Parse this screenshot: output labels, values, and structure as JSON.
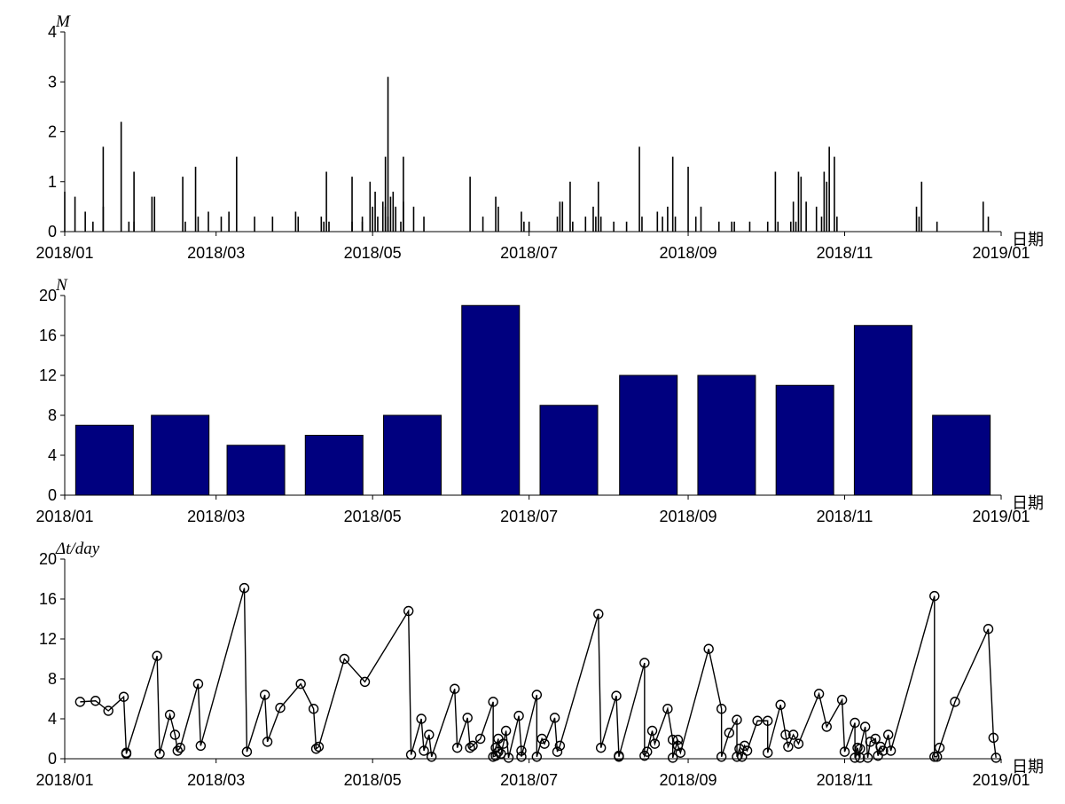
{
  "chart_data": [
    {
      "type": "bar",
      "id": "magnitude",
      "title": "",
      "ylabel": "M",
      "xlabel": "日期",
      "x_ticks": [
        "2018/01",
        "2018/03",
        "2018/05",
        "2018/07",
        "2018/09",
        "2018/11",
        "2019/01"
      ],
      "ylim": [
        0,
        4
      ],
      "y_ticks": [
        "0",
        "1",
        "2",
        "3",
        "4"
      ],
      "grid": false,
      "bar_color": "#000000",
      "series": [
        {
          "values": [
            [
              "2018-01-01",
              0.8
            ],
            [
              "2018-01-05",
              0.7
            ],
            [
              "2018-01-09",
              0.4
            ],
            [
              "2018-01-12",
              0.2
            ],
            [
              "2018-01-16",
              0.5
            ],
            [
              "2018-01-16",
              1.7
            ],
            [
              "2018-01-23",
              2.2
            ],
            [
              "2018-01-26",
              0.2
            ],
            [
              "2018-01-28",
              1.2
            ],
            [
              "2018-01-28",
              0.2
            ],
            [
              "2018-02-04",
              0.7
            ],
            [
              "2018-02-05",
              0.7
            ],
            [
              "2018-02-16",
              1.1
            ],
            [
              "2018-02-17",
              0.2
            ],
            [
              "2018-02-21",
              1.3
            ],
            [
              "2018-02-22",
              0.3
            ],
            [
              "2018-02-26",
              0.4
            ],
            [
              "2018-03-03",
              0.3
            ],
            [
              "2018-03-06",
              0.4
            ],
            [
              "2018-03-09",
              1.5
            ],
            [
              "2018-03-16",
              0.3
            ],
            [
              "2018-03-23",
              0.3
            ],
            [
              "2018-04-01",
              0.4
            ],
            [
              "2018-04-02",
              0.3
            ],
            [
              "2018-04-11",
              0.3
            ],
            [
              "2018-04-12",
              0.2
            ],
            [
              "2018-04-13",
              1.2
            ],
            [
              "2018-04-14",
              0.2
            ],
            [
              "2018-04-23",
              1.1
            ],
            [
              "2018-04-23",
              0.2
            ],
            [
              "2018-04-27",
              0.2
            ],
            [
              "2018-04-27",
              0.3
            ],
            [
              "2018-04-30",
              1.0
            ],
            [
              "2018-05-01",
              0.5
            ],
            [
              "2018-05-02",
              0.8
            ],
            [
              "2018-05-03",
              0.3
            ],
            [
              "2018-05-05",
              0.6
            ],
            [
              "2018-05-06",
              1.5
            ],
            [
              "2018-05-06",
              0.5
            ],
            [
              "2018-05-07",
              3.1
            ],
            [
              "2018-05-07",
              0.3
            ],
            [
              "2018-05-08",
              0.7
            ],
            [
              "2018-05-09",
              0.8
            ],
            [
              "2018-05-10",
              0.5
            ],
            [
              "2018-05-12",
              0.2
            ],
            [
              "2018-05-13",
              0.6
            ],
            [
              "2018-05-13",
              1.5
            ],
            [
              "2018-05-17",
              0.5
            ],
            [
              "2018-05-21",
              0.3
            ],
            [
              "2018-06-08",
              1.1
            ],
            [
              "2018-06-13",
              0.3
            ],
            [
              "2018-06-18",
              0.7
            ],
            [
              "2018-06-19",
              0.5
            ],
            [
              "2018-06-28",
              0.4
            ],
            [
              "2018-06-29",
              0.2
            ],
            [
              "2018-07-01",
              0.2
            ],
            [
              "2018-07-12",
              0.3
            ],
            [
              "2018-07-13",
              0.6
            ],
            [
              "2018-07-14",
              0.6
            ],
            [
              "2018-07-17",
              1.0
            ],
            [
              "2018-07-18",
              0.2
            ],
            [
              "2018-07-23",
              0.3
            ],
            [
              "2018-07-26",
              0.5
            ],
            [
              "2018-07-27",
              0.3
            ],
            [
              "2018-07-28",
              1.0
            ],
            [
              "2018-07-29",
              0.3
            ],
            [
              "2018-08-03",
              0.2
            ],
            [
              "2018-08-08",
              0.2
            ],
            [
              "2018-08-13",
              1.7
            ],
            [
              "2018-08-14",
              0.3
            ],
            [
              "2018-08-20",
              0.4
            ],
            [
              "2018-08-22",
              0.3
            ],
            [
              "2018-08-24",
              0.5
            ],
            [
              "2018-08-26",
              1.5
            ],
            [
              "2018-08-27",
              0.3
            ],
            [
              "2018-09-01",
              1.3
            ],
            [
              "2018-09-04",
              0.3
            ],
            [
              "2018-09-06",
              0.5
            ],
            [
              "2018-09-13",
              0.2
            ],
            [
              "2018-09-18",
              0.2
            ],
            [
              "2018-09-19",
              0.2
            ],
            [
              "2018-09-25",
              0.2
            ],
            [
              "2018-10-02",
              0.2
            ],
            [
              "2018-10-05",
              1.2
            ],
            [
              "2018-10-06",
              0.2
            ],
            [
              "2018-10-11",
              0.2
            ],
            [
              "2018-10-12",
              0.6
            ],
            [
              "2018-10-13",
              0.2
            ],
            [
              "2018-10-14",
              1.2
            ],
            [
              "2018-10-15",
              1.1
            ],
            [
              "2018-10-17",
              0.6
            ],
            [
              "2018-10-21",
              0.5
            ],
            [
              "2018-10-23",
              0.3
            ],
            [
              "2018-10-24",
              1.2
            ],
            [
              "2018-10-25",
              1.0
            ],
            [
              "2018-10-26",
              1.7
            ],
            [
              "2018-10-28",
              1.5
            ],
            [
              "2018-10-29",
              0.3
            ],
            [
              "2018-11-29",
              0.5
            ],
            [
              "2018-11-30",
              0.3
            ],
            [
              "2018-12-01",
              1.0
            ],
            [
              "2018-12-07",
              0.2
            ],
            [
              "2018-12-25",
              0.6
            ],
            [
              "2018-12-27",
              0.3
            ]
          ]
        }
      ]
    },
    {
      "type": "bar",
      "id": "monthly-count",
      "title": "",
      "ylabel": "N",
      "xlabel": "日期",
      "x_ticks": [
        "2018/01",
        "2018/03",
        "2018/05",
        "2018/07",
        "2018/09",
        "2018/11",
        "2019/01"
      ],
      "ylim": [
        0,
        20
      ],
      "y_ticks": [
        "0",
        "4",
        "8",
        "12",
        "16",
        "20"
      ],
      "grid": false,
      "bar_color": "#00007f",
      "categories": [
        "2018/01",
        "2018/02",
        "2018/03",
        "2018/04",
        "2018/05",
        "2018/06",
        "2018/07",
        "2018/08",
        "2018/09",
        "2018/10",
        "2018/11",
        "2018/12"
      ],
      "values": [
        7,
        8,
        5,
        6,
        8,
        19,
        9,
        12,
        12,
        11,
        17,
        8
      ]
    },
    {
      "type": "line",
      "id": "interval",
      "title": "",
      "ylabel": "Δt/day",
      "xlabel": "日期",
      "x_ticks": [
        "2018/01",
        "2018/03",
        "2018/05",
        "2018/07",
        "2018/09",
        "2018/11",
        "2019/01"
      ],
      "ylim": [
        0,
        20
      ],
      "y_ticks": [
        "0",
        "4",
        "8",
        "12",
        "16",
        "20"
      ],
      "grid": false,
      "marker": "circle",
      "line_color": "#000000",
      "series": [
        {
          "points": [
            [
              "2018-01-07",
              5.7
            ],
            [
              "2018-01-13",
              5.8
            ],
            [
              "2018-01-18",
              4.8
            ],
            [
              "2018-01-24",
              6.2
            ],
            [
              "2018-01-25",
              0.6
            ],
            [
              "2018-01-25",
              0.5
            ],
            [
              "2018-02-06",
              10.3
            ],
            [
              "2018-02-07",
              0.5
            ],
            [
              "2018-02-11",
              4.4
            ],
            [
              "2018-02-13",
              2.4
            ],
            [
              "2018-02-14",
              0.8
            ],
            [
              "2018-02-15",
              1.1
            ],
            [
              "2018-02-22",
              7.5
            ],
            [
              "2018-02-23",
              1.3
            ],
            [
              "2018-03-12",
              17.1
            ],
            [
              "2018-03-13",
              0.7
            ],
            [
              "2018-03-20",
              6.4
            ],
            [
              "2018-03-21",
              1.7
            ],
            [
              "2018-03-26",
              5.1
            ],
            [
              "2018-04-03",
              7.5
            ],
            [
              "2018-04-08",
              5.0
            ],
            [
              "2018-04-09",
              1.0
            ],
            [
              "2018-04-10",
              1.2
            ],
            [
              "2018-04-20",
              10.0
            ],
            [
              "2018-04-28",
              7.7
            ],
            [
              "2018-05-15",
              14.8
            ],
            [
              "2018-05-16",
              0.4
            ],
            [
              "2018-05-20",
              4.0
            ],
            [
              "2018-05-21",
              0.8
            ],
            [
              "2018-05-23",
              2.4
            ],
            [
              "2018-05-24",
              0.2
            ],
            [
              "2018-06-02",
              7.0
            ],
            [
              "2018-06-03",
              1.1
            ],
            [
              "2018-06-07",
              4.1
            ],
            [
              "2018-06-08",
              1.1
            ],
            [
              "2018-06-09",
              1.3
            ],
            [
              "2018-06-12",
              2.0
            ],
            [
              "2018-06-17",
              5.7
            ],
            [
              "2018-06-17",
              0.2
            ],
            [
              "2018-06-18",
              0.3
            ],
            [
              "2018-06-18",
              1.1
            ],
            [
              "2018-06-19",
              2.0
            ],
            [
              "2018-06-19",
              0.7
            ],
            [
              "2018-06-20",
              0.5
            ],
            [
              "2018-06-21",
              1.5
            ],
            [
              "2018-06-22",
              2.8
            ],
            [
              "2018-06-23",
              0.1
            ],
            [
              "2018-06-27",
              4.3
            ],
            [
              "2018-06-28",
              0.8
            ],
            [
              "2018-06-28",
              0.2
            ],
            [
              "2018-07-04",
              6.4
            ],
            [
              "2018-07-04",
              0.2
            ],
            [
              "2018-07-06",
              2.0
            ],
            [
              "2018-07-07",
              1.5
            ],
            [
              "2018-07-11",
              4.1
            ],
            [
              "2018-07-12",
              0.7
            ],
            [
              "2018-07-13",
              1.3
            ],
            [
              "2018-07-28",
              14.5
            ],
            [
              "2018-07-29",
              1.1
            ],
            [
              "2018-08-04",
              6.3
            ],
            [
              "2018-08-05",
              0.3
            ],
            [
              "2018-08-05",
              0.2
            ],
            [
              "2018-08-15",
              9.6
            ],
            [
              "2018-08-15",
              0.3
            ],
            [
              "2018-08-16",
              0.7
            ],
            [
              "2018-08-18",
              2.8
            ],
            [
              "2018-08-19",
              1.5
            ],
            [
              "2018-08-24",
              5.0
            ],
            [
              "2018-08-26",
              1.9
            ],
            [
              "2018-08-26",
              0.1
            ],
            [
              "2018-08-28",
              1.9
            ],
            [
              "2018-08-28",
              1.3
            ],
            [
              "2018-08-29",
              0.6
            ],
            [
              "2018-09-09",
              11.0
            ],
            [
              "2018-09-14",
              5.0
            ],
            [
              "2018-09-14",
              0.2
            ],
            [
              "2018-09-17",
              2.6
            ],
            [
              "2018-09-20",
              3.9
            ],
            [
              "2018-09-20",
              0.2
            ],
            [
              "2018-09-21",
              1.0
            ],
            [
              "2018-09-22",
              0.2
            ],
            [
              "2018-09-23",
              1.3
            ],
            [
              "2018-09-24",
              0.8
            ],
            [
              "2018-09-28",
              3.8
            ],
            [
              "2018-10-02",
              3.8
            ],
            [
              "2018-10-02",
              0.6
            ],
            [
              "2018-10-07",
              5.4
            ],
            [
              "2018-10-09",
              2.4
            ],
            [
              "2018-10-10",
              1.2
            ],
            [
              "2018-10-12",
              2.4
            ],
            [
              "2018-10-14",
              1.5
            ],
            [
              "2018-10-22",
              6.5
            ],
            [
              "2018-10-25",
              3.2
            ],
            [
              "2018-10-31",
              5.9
            ],
            [
              "2018-11-01",
              0.7
            ],
            [
              "2018-11-05",
              3.6
            ],
            [
              "2018-11-05",
              0.1
            ],
            [
              "2018-11-06",
              1.1
            ],
            [
              "2018-11-07",
              0.1
            ],
            [
              "2018-11-07",
              1.0
            ],
            [
              "2018-11-09",
              3.2
            ],
            [
              "2018-11-10",
              0.1
            ],
            [
              "2018-11-11",
              1.7
            ],
            [
              "2018-11-13",
              2.0
            ],
            [
              "2018-11-14",
              0.3
            ],
            [
              "2018-11-15",
              1.2
            ],
            [
              "2018-11-16",
              0.8
            ],
            [
              "2018-11-18",
              2.4
            ],
            [
              "2018-11-19",
              0.8
            ],
            [
              "2018-12-06",
              16.3
            ],
            [
              "2018-12-06",
              0.2
            ],
            [
              "2018-12-07",
              0.2
            ],
            [
              "2018-12-08",
              1.1
            ],
            [
              "2018-12-14",
              5.7
            ],
            [
              "2018-12-27",
              13.0
            ],
            [
              "2018-12-29",
              2.1
            ],
            [
              "2018-12-30",
              0.1
            ]
          ]
        }
      ]
    }
  ]
}
